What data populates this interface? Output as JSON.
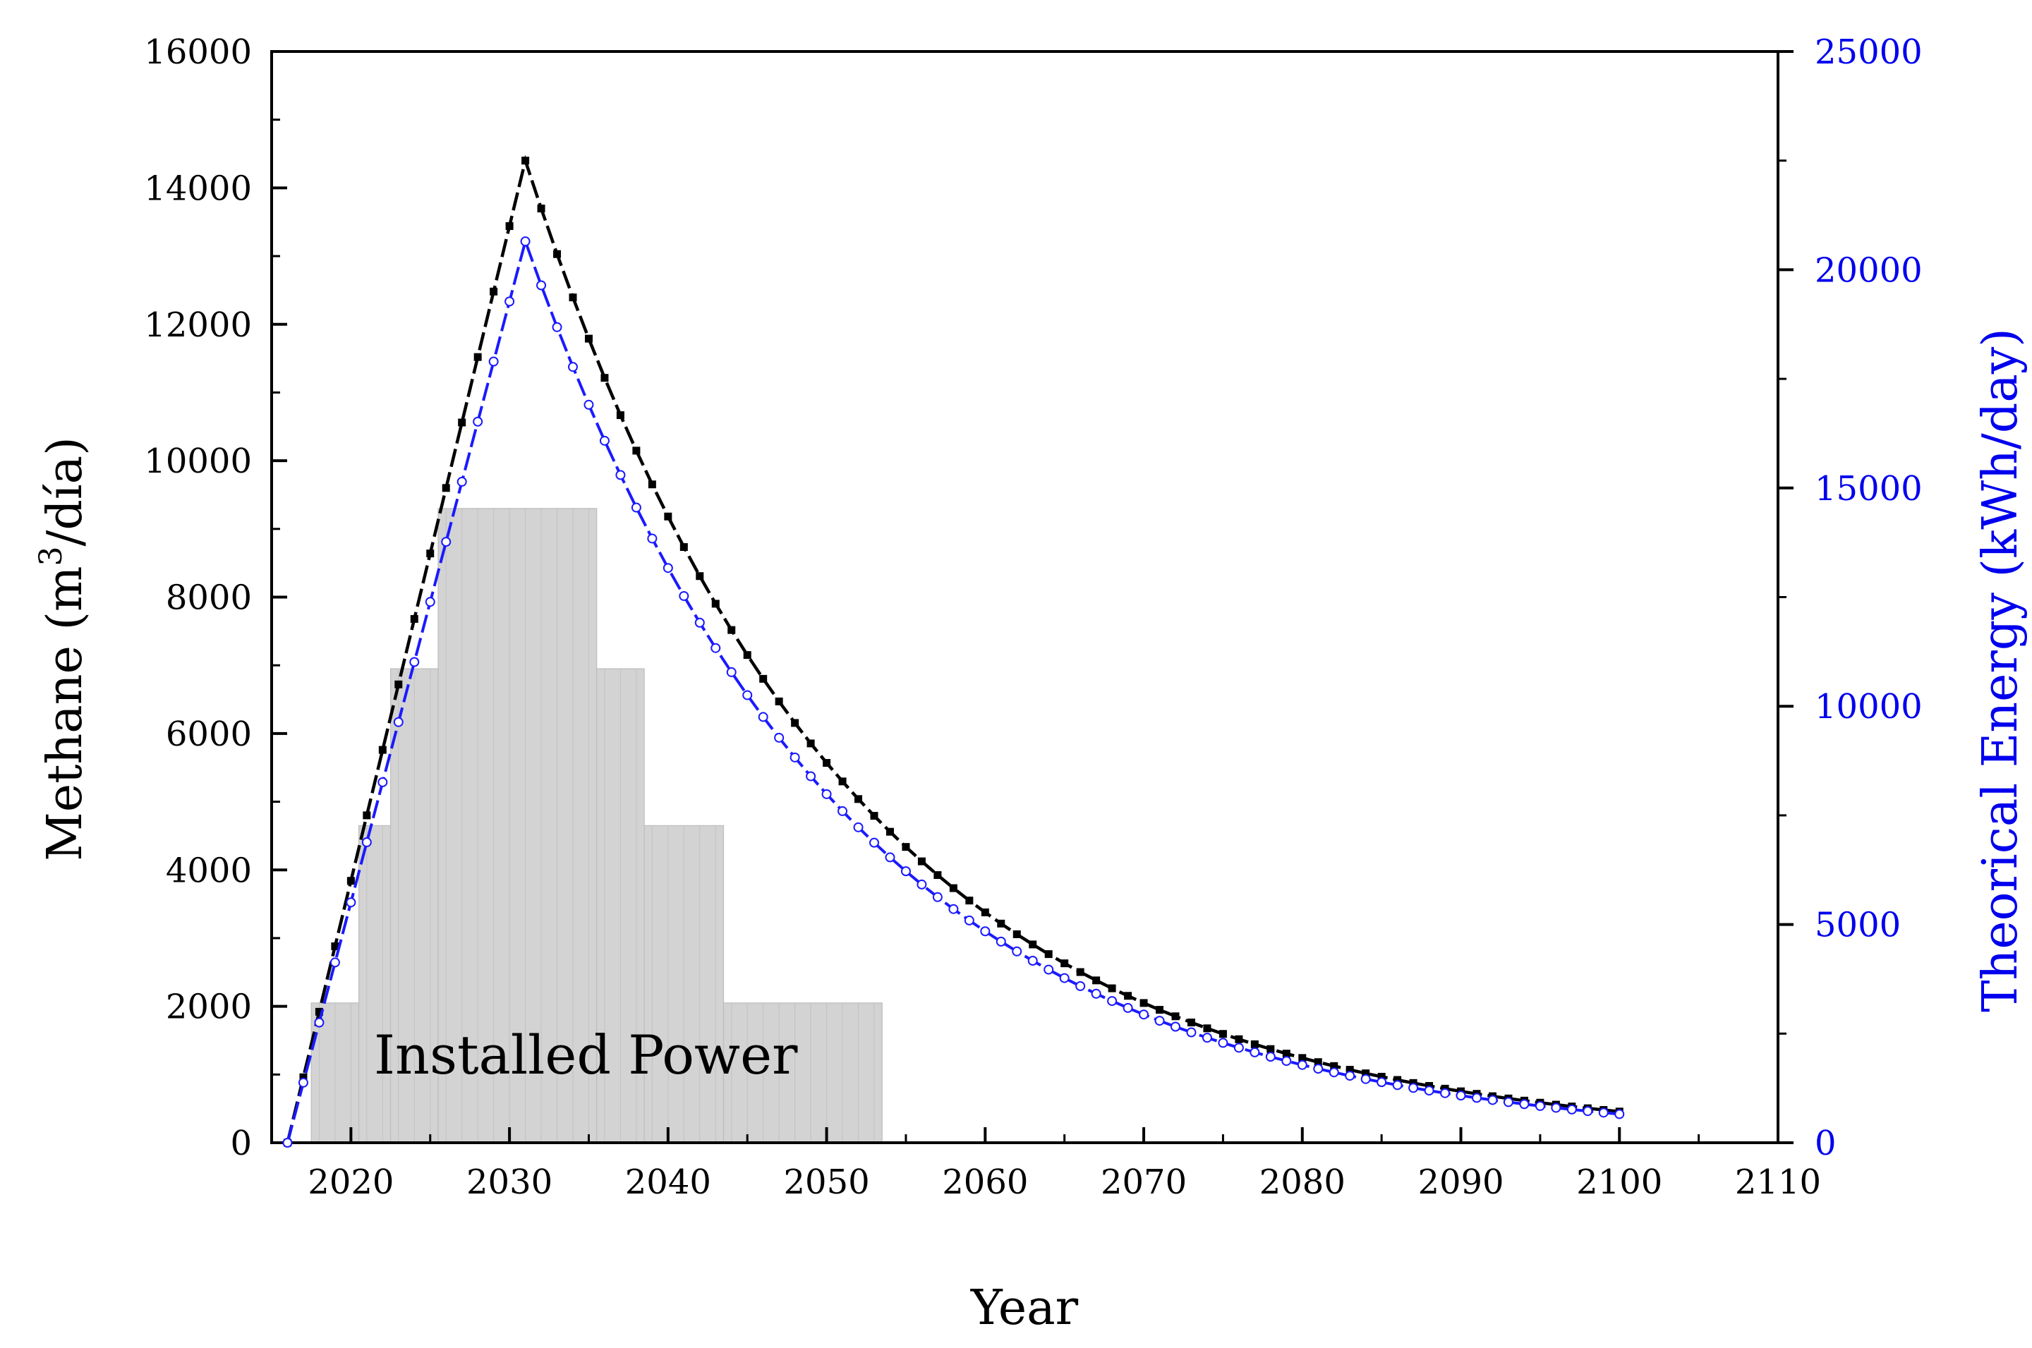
{
  "chart_data": {
    "type": "line",
    "title": "",
    "xlabel": "Year",
    "ylabel_left_prefix": "Methane (m",
    "ylabel_left_sup": "3",
    "ylabel_left_suffix": "/día)",
    "ylabel_right": "Theorical Energy (kWh/day)",
    "xlim": [
      2015,
      2110
    ],
    "ylim_left": [
      0,
      16000
    ],
    "ylim_right": [
      0,
      25000
    ],
    "xticks": [
      "2020",
      "2030",
      "2040",
      "2050",
      "2060",
      "2070",
      "2080",
      "2090",
      "2100",
      "2110"
    ],
    "yticks_left": [
      "0",
      "2000",
      "4000",
      "6000",
      "8000",
      "10000",
      "12000",
      "14000",
      "16000"
    ],
    "yticks_right": [
      "0",
      "5000",
      "10000",
      "15000",
      "20000",
      "25000"
    ],
    "annotation": "Installed Power",
    "installed_power": {
      "axis": "left",
      "steps": [
        {
          "x0": 2017.5,
          "x1": 2020.5,
          "value": 2050
        },
        {
          "x0": 2020.5,
          "x1": 2022.5,
          "value": 4650
        },
        {
          "x0": 2022.5,
          "x1": 2025.5,
          "value": 6950
        },
        {
          "x0": 2025.5,
          "x1": 2035.5,
          "value": 9300
        },
        {
          "x0": 2035.5,
          "x1": 2038.5,
          "value": 6950
        },
        {
          "x0": 2038.5,
          "x1": 2043.5,
          "value": 4650
        },
        {
          "x0": 2043.5,
          "x1": 2053.5,
          "value": 2050
        }
      ]
    },
    "methane_series": {
      "name": "Methane",
      "axis": "left",
      "color": "#000000",
      "marker": "square",
      "start_year": 2016,
      "peak_year": 2031,
      "peak_value": 14400,
      "decay_rate": 0.05,
      "end_year": 2100
    },
    "energy_series": {
      "name": "Theorical Energy",
      "axis": "right",
      "color": "#1a1aff",
      "marker": "circle",
      "start_year": 2016,
      "peak_year": 2031,
      "peak_value": 20650,
      "decay_rate": 0.05,
      "end_year": 2100
    }
  }
}
